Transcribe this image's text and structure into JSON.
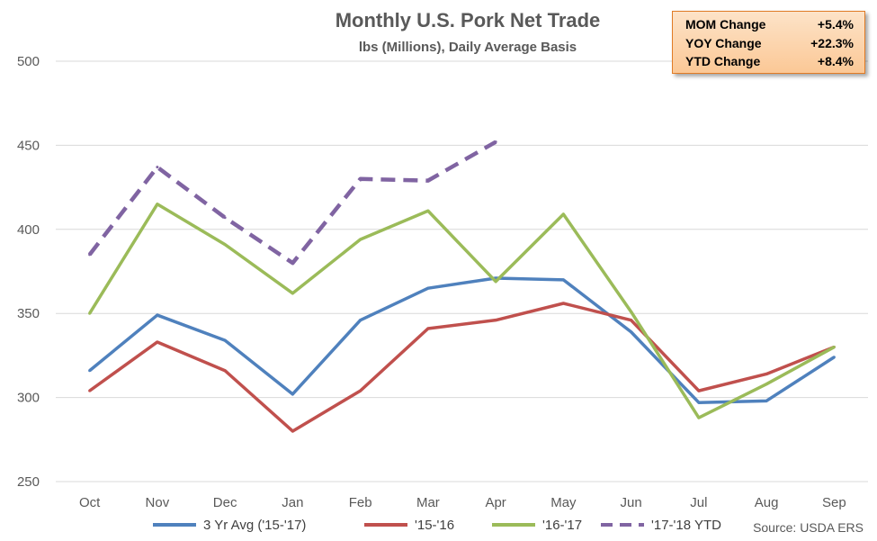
{
  "chart_data": {
    "type": "line",
    "title": "Monthly U.S. Pork Net Trade",
    "subtitle": "lbs (Millions), Daily Average Basis",
    "categories": [
      "Oct",
      "Nov",
      "Dec",
      "Jan",
      "Feb",
      "Mar",
      "Apr",
      "May",
      "Jun",
      "Jul",
      "Aug",
      "Sep"
    ],
    "ylim": [
      250,
      500
    ],
    "yticks": [
      250,
      300,
      350,
      400,
      450,
      500
    ],
    "grid": true,
    "legend_position": "bottom",
    "series": [
      {
        "name": "3 Yr Avg ('15-'17)",
        "color": "#4f81bd",
        "dashed": false,
        "values": [
          316,
          349,
          334,
          302,
          346,
          365,
          371,
          370,
          339,
          297,
          298,
          324
        ]
      },
      {
        "name": "'15-'16",
        "color": "#c0504d",
        "dashed": false,
        "values": [
          304,
          333,
          316,
          280,
          304,
          341,
          346,
          356,
          346,
          304,
          314,
          330
        ]
      },
      {
        "name": "'16-'17",
        "color": "#9bbb59",
        "dashed": false,
        "values": [
          350,
          415,
          391,
          362,
          394,
          411,
          369,
          409,
          351,
          288,
          308,
          330
        ]
      },
      {
        "name": "'17-'18 YTD",
        "color": "#8064a2",
        "dashed": true,
        "values": [
          385,
          437,
          407,
          380,
          430,
          429,
          452,
          null,
          null,
          null,
          null,
          null
        ]
      }
    ],
    "annotations": {
      "stats": [
        {
          "label": "MOM Change",
          "value": "+5.4%"
        },
        {
          "label": "YOY Change",
          "value": "+22.3%"
        },
        {
          "label": "YTD Change",
          "value": "+8.4%"
        }
      ],
      "source": "Source: USDA ERS"
    }
  }
}
